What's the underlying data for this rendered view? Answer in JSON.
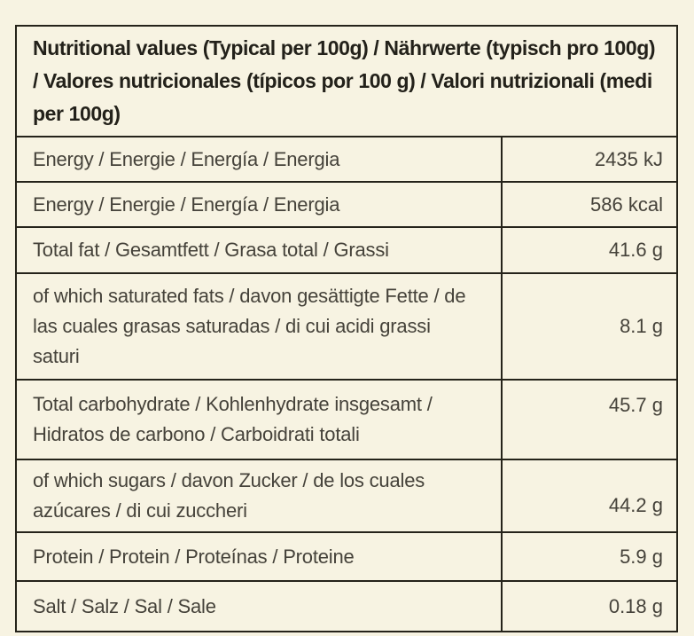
{
  "table": {
    "header": "Nutritional values (Typical per 100g) / Nährwerte (typisch pro 100g) / Valores nutricionales (típicos por 100 g) / Valori nutrizionali (medi per 100g)",
    "rows": [
      {
        "label": "Energy / Energie / Energía / Energia",
        "value": "2435 kJ"
      },
      {
        "label": "Energy / Energie / Energía / Energia",
        "value": "586 kcal"
      },
      {
        "label": "Total fat / Gesamtfett / Grasa total / Grassi",
        "value": "41.6 g"
      },
      {
        "label": "of which saturated fats /  davon gesättigte Fette / de las cuales grasas saturadas / di cui acidi grassi saturi",
        "value": "8.1 g"
      },
      {
        "label": "Total carbohydrate / Kohlenhydrate insgesamt / Hidratos de carbono / Carboidrati totali",
        "value": "45.7 g"
      },
      {
        "label": "of which sugars / davon Zucker / de los cuales azúcares / di cui zuccheri",
        "value": "44.2 g"
      },
      {
        "label": "Protein / Protein / Proteínas / Proteine",
        "value": "5.9 g"
      },
      {
        "label": "Salt / Salz / Sal / Sale",
        "value": "0.18 g"
      }
    ],
    "colors": {
      "background": "#f7f3e2",
      "border": "#25231a",
      "header_text": "#23211a",
      "body_text": "#45423a"
    }
  }
}
